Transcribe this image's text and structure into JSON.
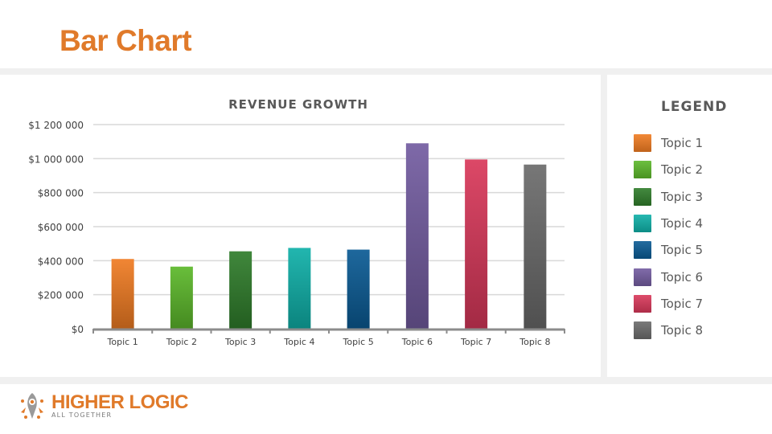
{
  "page": {
    "title": "Bar Chart"
  },
  "chart_data": {
    "type": "bar",
    "title": "REVENUE GROWTH",
    "xlabel": "",
    "ylabel": "",
    "categories": [
      "Topic 1",
      "Topic 2",
      "Topic 3",
      "Topic 4",
      "Topic 5",
      "Topic 6",
      "Topic 7",
      "Topic 8"
    ],
    "values": [
      410000,
      365000,
      455000,
      475000,
      465000,
      1090000,
      995000,
      965000
    ],
    "ylim": [
      0,
      1200000
    ],
    "yticks": [
      0,
      200000,
      400000,
      600000,
      800000,
      1000000,
      1200000
    ],
    "ytick_labels": [
      "$0",
      "$200 000",
      "$400 000",
      "$600 000",
      "$800 000",
      "$1 000 000",
      "$1 200 000"
    ],
    "colors": [
      "#f07c22",
      "#5cb82a",
      "#2f7d2b",
      "#0fb0a8",
      "#0a5b94",
      "#735ca0",
      "#d9385a",
      "#6b6b6b"
    ],
    "grid": true,
    "legend_position": "right"
  },
  "legend": {
    "title": "LEGEND",
    "items": [
      {
        "label": "Topic 1",
        "color": "#f07c22"
      },
      {
        "label": "Topic 2",
        "color": "#5cb82a"
      },
      {
        "label": "Topic 3",
        "color": "#2f7d2b"
      },
      {
        "label": "Topic 4",
        "color": "#0fb0a8"
      },
      {
        "label": "Topic 5",
        "color": "#0a5b94"
      },
      {
        "label": "Topic 6",
        "color": "#735ca0"
      },
      {
        "label": "Topic 7",
        "color": "#d9385a"
      },
      {
        "label": "Topic 8",
        "color": "#6b6b6b"
      }
    ]
  },
  "logo": {
    "brand": "HIGHER LOGIC",
    "tagline": "ALL TOGETHER",
    "icon": "higher-logic-logo-icon"
  }
}
